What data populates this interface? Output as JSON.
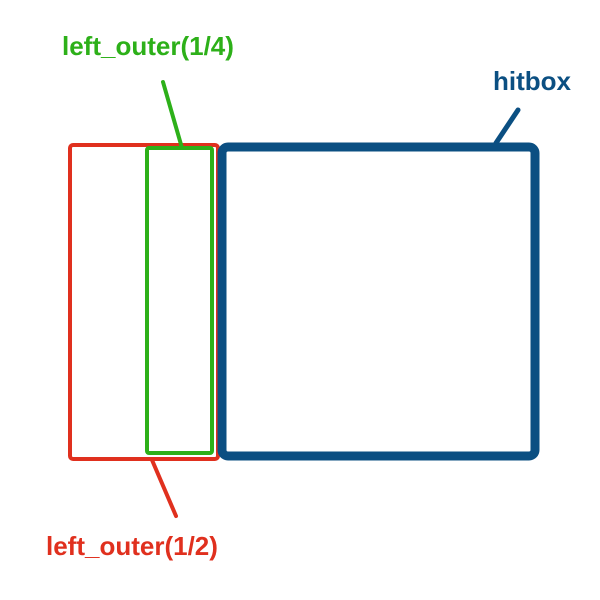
{
  "labels": {
    "left_outer_quarter": "left_outer(1/4)",
    "hitbox": "hitbox",
    "left_outer_half": "left_outer(1/2)"
  },
  "colors": {
    "green": "#2db019",
    "red": "#e0301e",
    "blue": "#0b4f82",
    "background": "#ffffff"
  }
}
